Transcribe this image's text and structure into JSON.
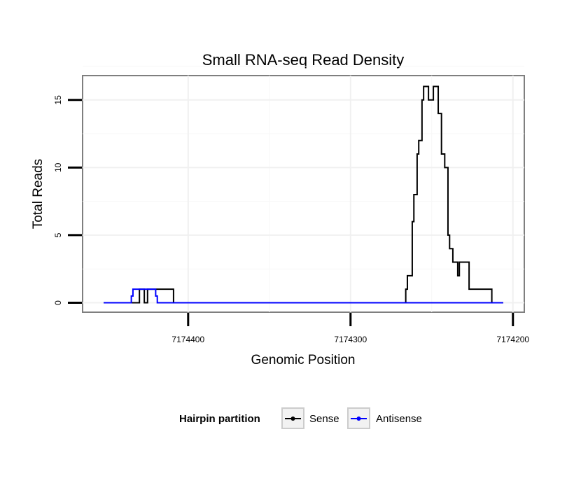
{
  "chart_data": {
    "type": "line",
    "title": "Small RNA-seq Read Density",
    "xlabel": "Genomic Position",
    "ylabel": "Total Reads",
    "x_reversed": true,
    "xlim": [
      7174465,
      7174193
    ],
    "ylim": [
      -0.7,
      16.8
    ],
    "x_ticks": [
      7174400,
      7174300,
      7174200
    ],
    "x_tick_labels": [
      "7174400",
      "7174300",
      "7174200"
    ],
    "y_ticks": [
      0,
      5,
      10,
      15
    ],
    "y_tick_labels": [
      "0",
      "5",
      "10",
      "15"
    ],
    "grid": true,
    "legend": {
      "title": "Hairpin partition",
      "position": "bottom",
      "entries": [
        {
          "label": "Sense",
          "color": "#000000"
        },
        {
          "label": "Antisense",
          "color": "#0000ff"
        }
      ]
    },
    "series": [
      {
        "name": "Sense",
        "color": "#000000",
        "x": [
          7174452,
          7174430,
          7174430,
          7174427,
          7174427,
          7174425,
          7174425,
          7174409,
          7174409,
          7174407,
          7174407,
          7174266,
          7174266,
          7174265,
          7174265,
          7174264,
          7174264,
          7174262,
          7174262,
          7174261,
          7174261,
          7174259,
          7174259,
          7174258,
          7174258,
          7174256,
          7174256,
          7174255,
          7174255,
          7174253,
          7174253,
          7174252,
          7174252,
          7174249,
          7174249,
          7174247,
          7174247,
          7174246,
          7174246,
          7174244,
          7174244,
          7174242,
          7174242,
          7174240,
          7174240,
          7174239,
          7174239,
          7174237,
          7174237,
          7174236,
          7174236,
          7174234,
          7174234,
          7174233,
          7174233,
          7174232,
          7174232,
          7174230,
          7174230,
          7174227,
          7174227,
          7174226,
          7174226,
          7174213,
          7174213,
          7174212,
          7174212,
          7174206
        ],
        "y": [
          0,
          0,
          1,
          1,
          0,
          0,
          1,
          1,
          0,
          0,
          0,
          0,
          1,
          1,
          2,
          2,
          2,
          2,
          6,
          6,
          8,
          8,
          11,
          11,
          12,
          12,
          15,
          15,
          16,
          16,
          16,
          16,
          15,
          15,
          16,
          16,
          16,
          16,
          14,
          14,
          11,
          11,
          10,
          10,
          5,
          5,
          4,
          4,
          3,
          3,
          3,
          3,
          2,
          2,
          3,
          3,
          3,
          3,
          3,
          3,
          1,
          1,
          1,
          1,
          0,
          0,
          0,
          0
        ]
      },
      {
        "name": "Antisense",
        "color": "#0000ff",
        "x": [
          7174452,
          7174435,
          7174435,
          7174434,
          7174434,
          7174420,
          7174420,
          7174419,
          7174419,
          7174206
        ],
        "y": [
          0,
          0,
          0.5,
          0.5,
          1,
          1,
          0.5,
          0.5,
          0,
          0
        ]
      }
    ]
  }
}
